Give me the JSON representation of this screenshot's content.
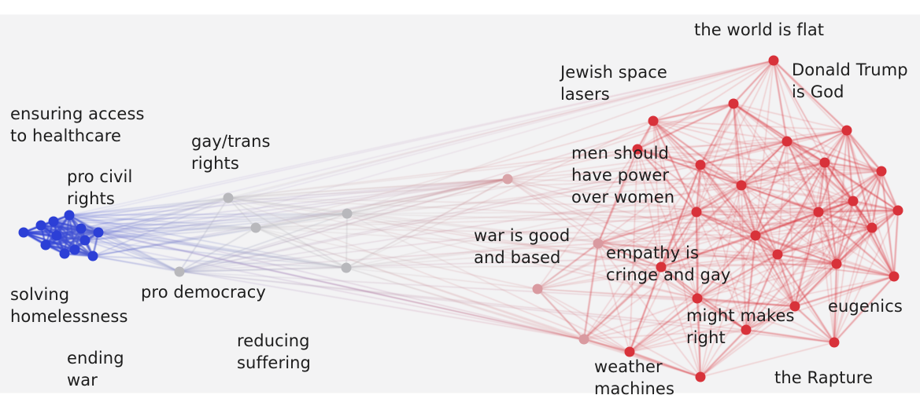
{
  "graph": {
    "colors": {
      "left": "#2c3fd6",
      "center": "#b8b8bc",
      "right": "#d8323a"
    },
    "labels": {
      "world_flat": "the world is flat",
      "trump_god": "Donald Trump\nis God",
      "space_lasers": "Jewish space\nlasers",
      "healthcare": "ensuring access\nto healthcare",
      "gay_trans": "gay/trans\nrights",
      "civil_rights": "pro civil\nrights",
      "men_power": "men should\nhave power\nover women",
      "war_good": "war is good\nand based",
      "empathy": "empathy is\ncringe and gay",
      "solving_homeless": "solving\nhomelessness",
      "pro_democracy": "pro democracy",
      "eugenics": "eugenics",
      "might_right": "might makes\nright",
      "reducing_suffering": "reducing\nsuffering",
      "ending_war": "ending\nwar",
      "weather": "weather\nmachines",
      "rapture": "the Rapture"
    }
  }
}
